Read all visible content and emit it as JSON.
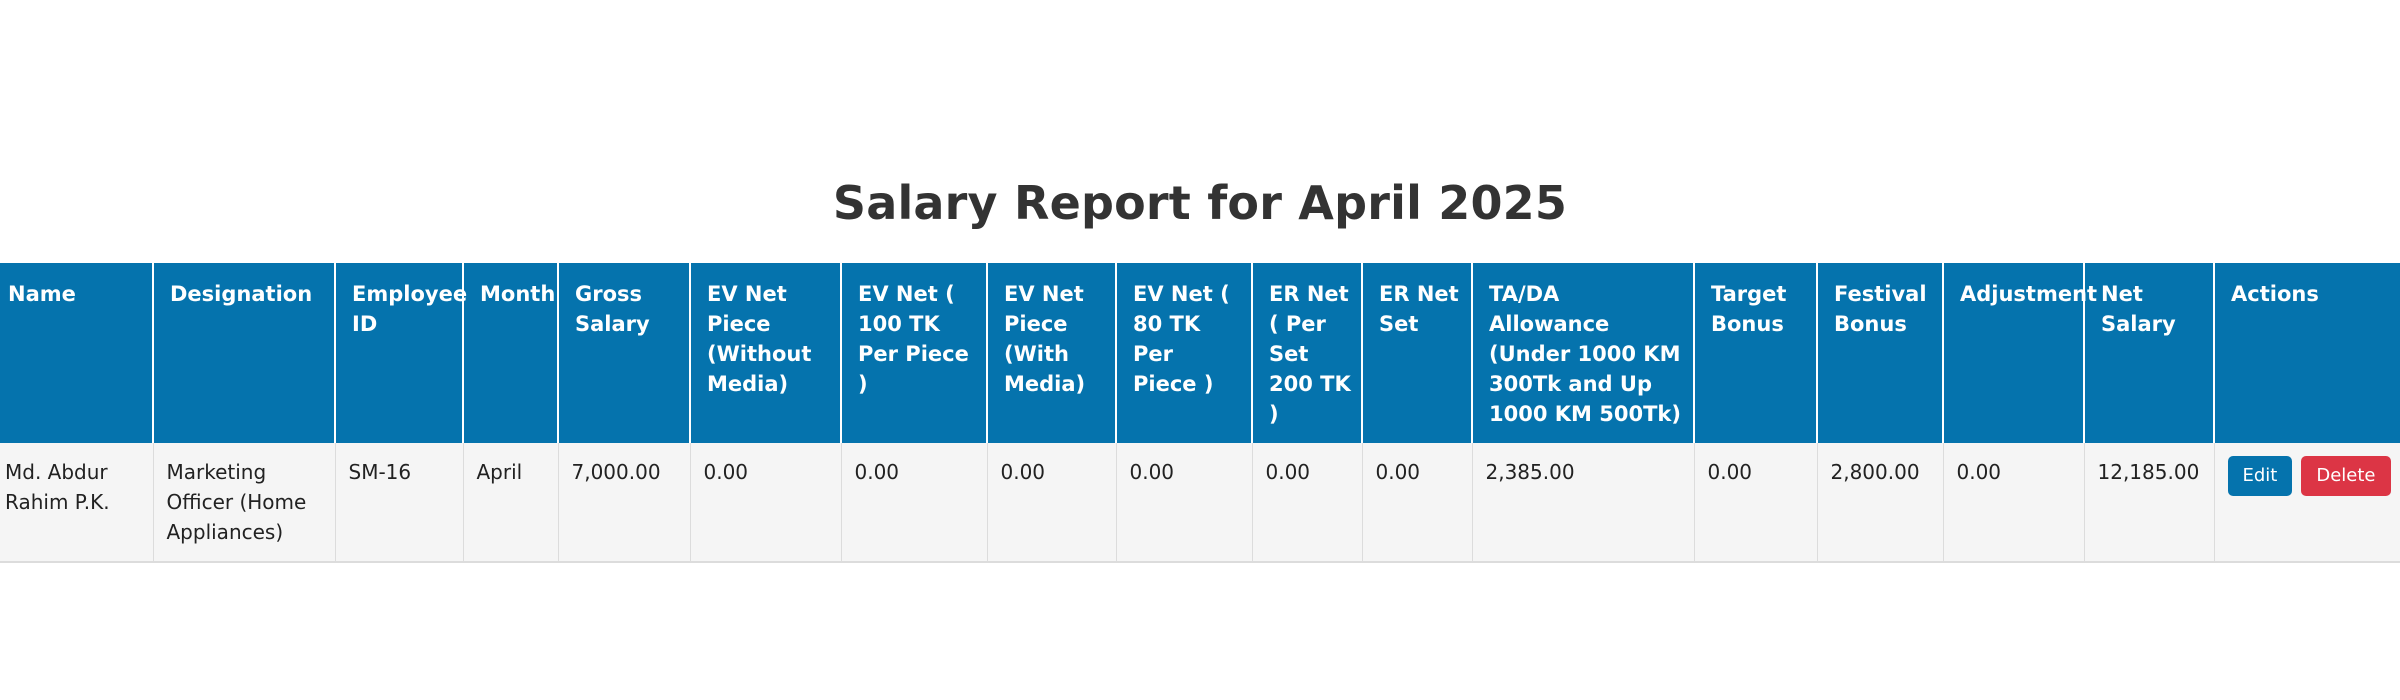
{
  "page_title": "Salary Report for April 2025",
  "colors": {
    "header_bg": "#0573ad",
    "edit_button": "#0573ad",
    "delete_button": "#dc3545"
  },
  "table": {
    "headers": [
      "Name",
      "Designation",
      "Employee ID",
      "Month",
      "Gross Salary",
      "EV Net Piece (Without Media)",
      "EV Net ( 100 TK Per Piece )",
      "EV Net Piece (With Media)",
      "EV Net ( 80 TK Per Piece )",
      "ER Net ( Per Set 200 TK )",
      "ER Net Set",
      "TA/DA Allowance (Under 1000 KM 300Tk and Up 1000 KM 500Tk)",
      "Target Bonus",
      "Festival Bonus",
      "Adjustment",
      "Net Salary",
      "Actions"
    ],
    "rows": [
      {
        "cells": [
          "Md. Abdur Rahim P.K.",
          "Marketing Officer (Home Appliances)",
          "SM-16",
          "April",
          "7,000.00",
          "0.00",
          "0.00",
          "0.00",
          "0.00",
          "0.00",
          "0.00",
          "2,385.00",
          "0.00",
          "2,800.00",
          "0.00",
          "12,185.00"
        ],
        "edit_label": "Edit",
        "delete_label": "Delete"
      }
    ]
  }
}
